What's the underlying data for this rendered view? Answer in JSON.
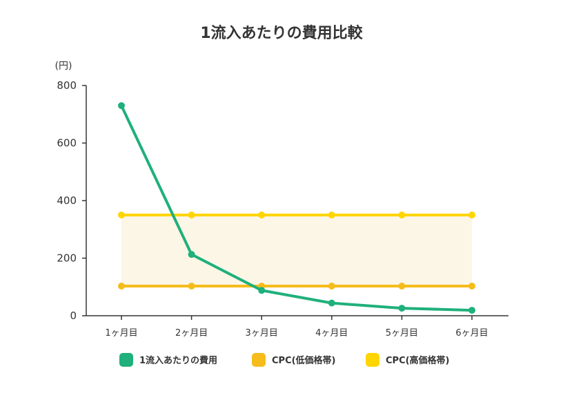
{
  "chart_data": {
    "type": "line",
    "title": "1流入あたりの費用比較",
    "ylabel": "(円)",
    "xlabel": "",
    "ylim": [
      0,
      800
    ],
    "yticks": [
      0,
      200,
      400,
      600,
      800
    ],
    "categories": [
      "1ヶ月目",
      "2ヶ月目",
      "3ヶ月目",
      "4ヶ月目",
      "5ヶ月目",
      "6ヶ月目"
    ],
    "series": [
      {
        "name": "1流入あたりの費用",
        "values": [
          730,
          213,
          88,
          44,
          26,
          19
        ],
        "color": "#1fb07b"
      },
      {
        "name": "CPC(低価格帯)",
        "values": [
          103,
          103,
          103,
          103,
          103,
          103
        ],
        "color": "#f5bc1b"
      },
      {
        "name": "CPC(高価格帯)",
        "values": [
          350,
          350,
          350,
          350,
          350,
          350
        ],
        "color": "#ffd500"
      }
    ],
    "band": {
      "between": [
        "CPC(低価格帯)",
        "CPC(高価格帯)"
      ],
      "color": "#fcf6e6"
    },
    "legend_position": "bottom",
    "grid": false
  }
}
